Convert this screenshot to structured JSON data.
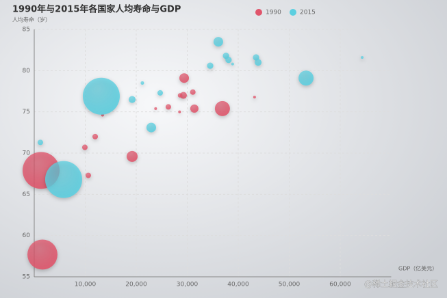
{
  "chart_data": {
    "type": "scatter",
    "title": "1990年与2015年各国家人均寿命与GDP",
    "y_label": "人均寿命（岁）",
    "x_label": "GDP（亿美元）",
    "watermark": "@稀土掘金技术社区",
    "xlim": [
      0,
      70000
    ],
    "xticks": [
      {
        "value": 10000,
        "label": "10,000"
      },
      {
        "value": 20000,
        "label": "20,000"
      },
      {
        "value": 30000,
        "label": "30,000"
      },
      {
        "value": 40000,
        "label": "40,000"
      },
      {
        "value": 50000,
        "label": "50,000"
      },
      {
        "value": 60000,
        "label": "60,000"
      }
    ],
    "ylim": [
      55,
      85
    ],
    "yticks": [
      55,
      60,
      65,
      70,
      75,
      80,
      85
    ],
    "grid": true,
    "legend": "top",
    "series": [
      {
        "name": "1990",
        "color": "#e0556b",
        "values": [
          [
            1611,
            57.7,
            905
          ],
          [
            1342,
            67.9,
            1370
          ],
          [
            10600,
            67.3,
            30
          ],
          [
            9930,
            70.7,
            30
          ],
          [
            11950,
            72.0,
            30
          ],
          [
            19200,
            69.6,
            120
          ],
          [
            26300,
            75.6,
            30
          ],
          [
            29260,
            77.0,
            47
          ],
          [
            29400,
            79.1,
            92
          ],
          [
            28600,
            77.0,
            20
          ],
          [
            31100,
            77.4,
            30
          ],
          [
            31400,
            75.4,
            68
          ],
          [
            36900,
            75.4,
            227
          ],
          [
            23800,
            75.4,
            7.5
          ],
          [
            28500,
            75.0,
            7.5
          ],
          [
            43200,
            76.8,
            7.5
          ],
          [
            13400,
            74.6,
            7.5
          ]
        ]
      },
      {
        "name": "2015",
        "color": "#5ccfe0",
        "values": [
          [
            5770,
            66.8,
            1370
          ],
          [
            13150,
            76.9,
            1370
          ],
          [
            1200,
            71.3,
            30
          ],
          [
            19200,
            76.5,
            47
          ],
          [
            22950,
            73.1,
            92
          ],
          [
            21200,
            78.5,
            12
          ],
          [
            24700,
            77.3,
            30
          ],
          [
            34500,
            80.6,
            40
          ],
          [
            36100,
            83.5,
            92
          ],
          [
            37600,
            81.8,
            40
          ],
          [
            38100,
            81.3,
            40
          ],
          [
            38900,
            80.8,
            7.5
          ],
          [
            43500,
            81.6,
            40
          ],
          [
            43900,
            81.0,
            47
          ],
          [
            53300,
            79.1,
            227
          ],
          [
            64300,
            81.6,
            7.5
          ]
        ]
      }
    ]
  }
}
